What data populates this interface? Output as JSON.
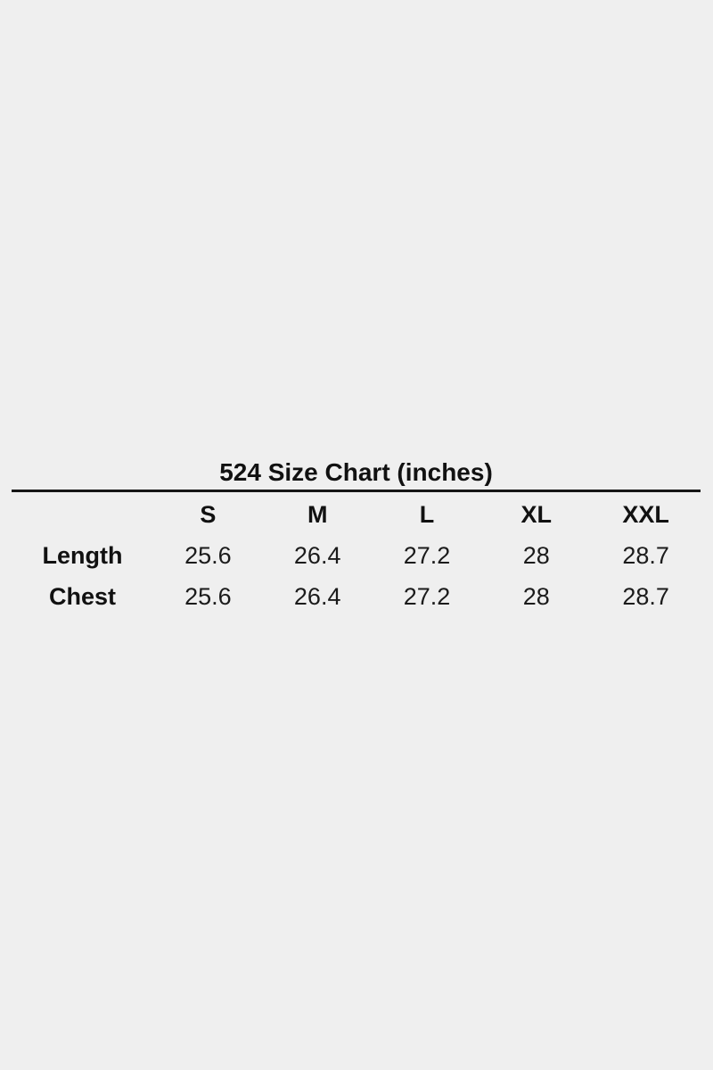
{
  "page": {
    "background_color": "#efefef",
    "text_color": "#111111",
    "rule_color": "#161616"
  },
  "chart_data": {
    "type": "table",
    "title": "524 Size Chart (inches)",
    "columns": [
      "S",
      "M",
      "L",
      "XL",
      "XXL"
    ],
    "rows": [
      {
        "label": "Length",
        "values": [
          "25.6",
          "26.4",
          "27.2",
          "28",
          "28.7"
        ]
      },
      {
        "label": "Chest",
        "values": [
          "25.6",
          "26.4",
          "27.2",
          "28",
          "28.7"
        ]
      }
    ],
    "layout": {
      "legend": "none",
      "grid": "off",
      "title_position": "top-center",
      "units": "inches"
    }
  }
}
